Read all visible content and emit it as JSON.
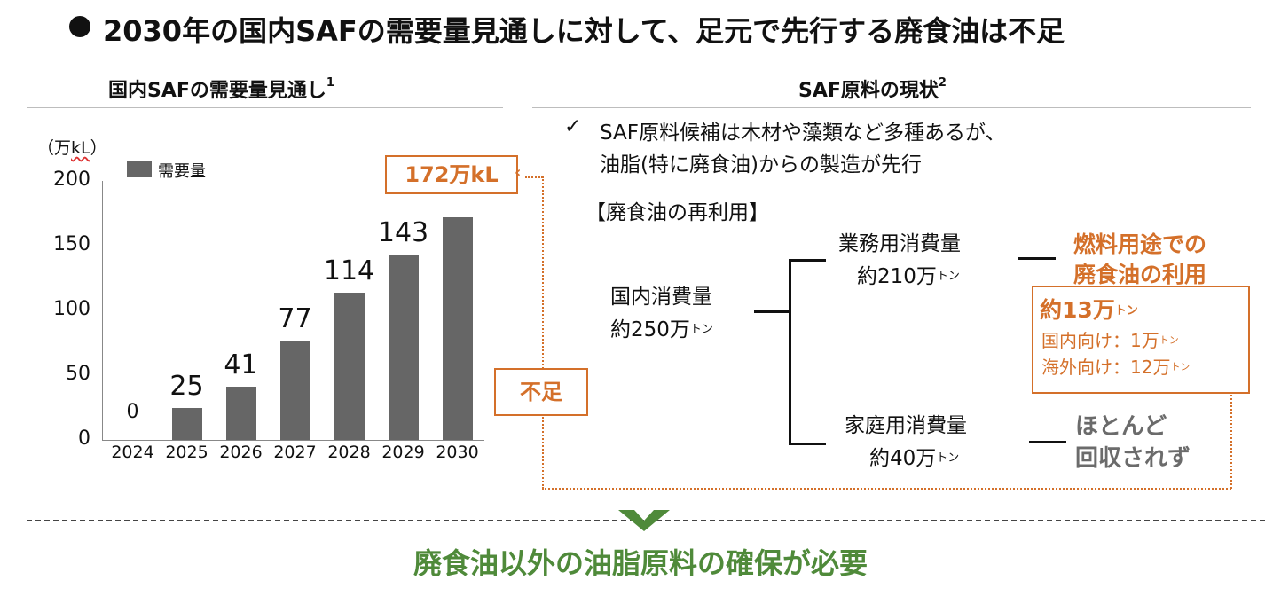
{
  "page": {
    "title": "2030年の国内SAFの需要量見通しに対して、足元で先行する廃食油は不足",
    "conclusion": "廃食油以外の油脂原料の確保が必要"
  },
  "left": {
    "heading": "国内SAFの需要量見通し",
    "heading_sup": "1",
    "unit_open": "（万",
    "unit_kl": "kL",
    "unit_close": "）",
    "total_label": "172万kL",
    "shortage_label": "不足"
  },
  "right": {
    "heading": "SAF原料の現状",
    "heading_sup": "2",
    "check": "✓",
    "bullet_line1": "SAF原料候補は木材や藻類など多種あるが、",
    "bullet_line2": "油脂(特に廃食油)からの製造が先行",
    "subheading": "【廃食油の再利用】",
    "domestic_label": "国内消費量",
    "domestic_value": "約250万",
    "commercial_label": "業務用消費量",
    "commercial_value": "約210万",
    "household_label": "家庭用消費量",
    "household_value": "約40万",
    "fuel_use_line1": "燃料用途での",
    "fuel_use_line2": "廃食油の利用",
    "fuel_total": "約13万",
    "fuel_domestic": "国内向け：1万",
    "fuel_overseas": "海外向け：12万",
    "ton_unit": "トン",
    "not_collected_line1": "ほとんど",
    "not_collected_line2": "回収されず"
  },
  "colors": {
    "bar": "#666666",
    "accent_orange": "#d4702a",
    "conclusion_green": "#4f8a3a",
    "muted_gray": "#6b6b6b"
  },
  "chart_data": {
    "type": "bar",
    "title": "国内SAFの需要量見通し",
    "ylabel": "（万kL）",
    "xlabel": "",
    "categories": [
      "2024",
      "2025",
      "2026",
      "2027",
      "2028",
      "2029",
      "2030"
    ],
    "series": [
      {
        "name": "需要量",
        "values": [
          0,
          25,
          41,
          77,
          114,
          143,
          172
        ]
      }
    ],
    "data_labels": [
      "0",
      "25",
      "41",
      "77",
      "114",
      "143",
      ""
    ],
    "yticks": [
      "0",
      "50",
      "100",
      "150",
      "200"
    ],
    "ylim": [
      0,
      200
    ],
    "legend": "top-left",
    "grid": false
  }
}
